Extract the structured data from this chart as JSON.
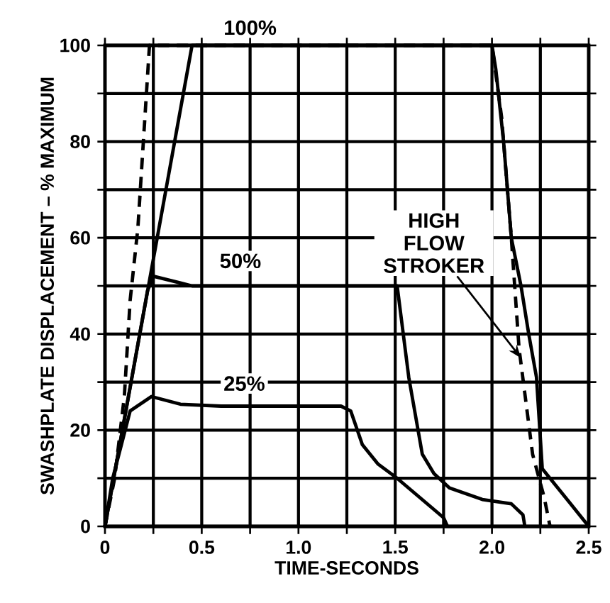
{
  "chart_data": {
    "type": "line",
    "xlabel": "TIME-SECONDS",
    "ylabel": "SWASHPLATE DISPLACEMENT – % MAXIMUM",
    "xlim": [
      0,
      2.5
    ],
    "ylim": [
      0,
      100
    ],
    "xticks": [
      0,
      {
        "value": 0.25,
        "label": null
      },
      {
        "value": 0.5,
        "label": "0.5"
      },
      {
        "value": 0.75,
        "label": null
      },
      {
        "value": 1,
        "label": "1.0"
      },
      {
        "value": 1.25,
        "label": null
      },
      {
        "value": 1.5,
        "label": "1.5"
      },
      {
        "value": 1.75,
        "label": null
      },
      {
        "value": 2,
        "label": "2.0"
      },
      {
        "value": 2.25,
        "label": null
      },
      {
        "value": 2.5,
        "label": "2.5"
      }
    ],
    "yticks": [
      0,
      {
        "value": 10,
        "label": null
      },
      20,
      {
        "value": 30,
        "label": null
      },
      40,
      {
        "value": 50,
        "label": null
      },
      60,
      {
        "value": 70,
        "label": null
      },
      80,
      {
        "value": 90,
        "label": null
      },
      100
    ],
    "grid": true,
    "marker": "none",
    "series": [
      {
        "color": "#000000",
        "line_style": "solid",
        "x": [
          0,
          0.45,
          2.0,
          2.02,
          2.06,
          2.1,
          2.15,
          2.19,
          2.23,
          2.26,
          2.3,
          2.4,
          2.5
        ],
        "values": [
          0,
          100,
          100,
          95,
          80,
          60,
          50,
          40,
          31,
          12,
          10,
          5,
          0
        ]
      },
      {
        "color": "#000000",
        "line_style": "dashed",
        "x": [
          0,
          0.05,
          0.1,
          0.13,
          0.17,
          0.23,
          2.0,
          2.05,
          2.1,
          2.14,
          2.21,
          2.27,
          2.3
        ],
        "values": [
          0,
          10,
          27,
          47,
          62,
          100,
          100,
          85,
          60,
          37,
          15,
          6,
          0
        ]
      },
      {
        "color": "#000000",
        "line_style": "solid",
        "x": [
          0,
          0.22,
          0.25,
          0.35,
          0.45,
          1.5,
          1.51,
          1.57,
          1.64,
          1.7,
          1.78,
          1.95,
          2.1,
          2.16,
          2.17
        ],
        "values": [
          0,
          49,
          52,
          51,
          50,
          50,
          50,
          31,
          15,
          11,
          8,
          5.6,
          4.7,
          2.4,
          0
        ]
      },
      {
        "color": "#000000",
        "line_style": "solid",
        "x": [
          0,
          0.04,
          0.13,
          0.24,
          0.39,
          0.6,
          1.22,
          1.27,
          1.33,
          1.41,
          1.51,
          1.75,
          1.77
        ],
        "values": [
          0,
          10,
          24,
          27,
          25.4,
          25,
          25,
          24,
          17,
          13,
          10,
          1.8,
          0
        ]
      }
    ],
    "annotations": [
      "100%",
      "50%",
      "25%",
      {
        "text": "HIGH FLOW STROKER",
        "x": 2.15,
        "y": 35
      }
    ]
  }
}
